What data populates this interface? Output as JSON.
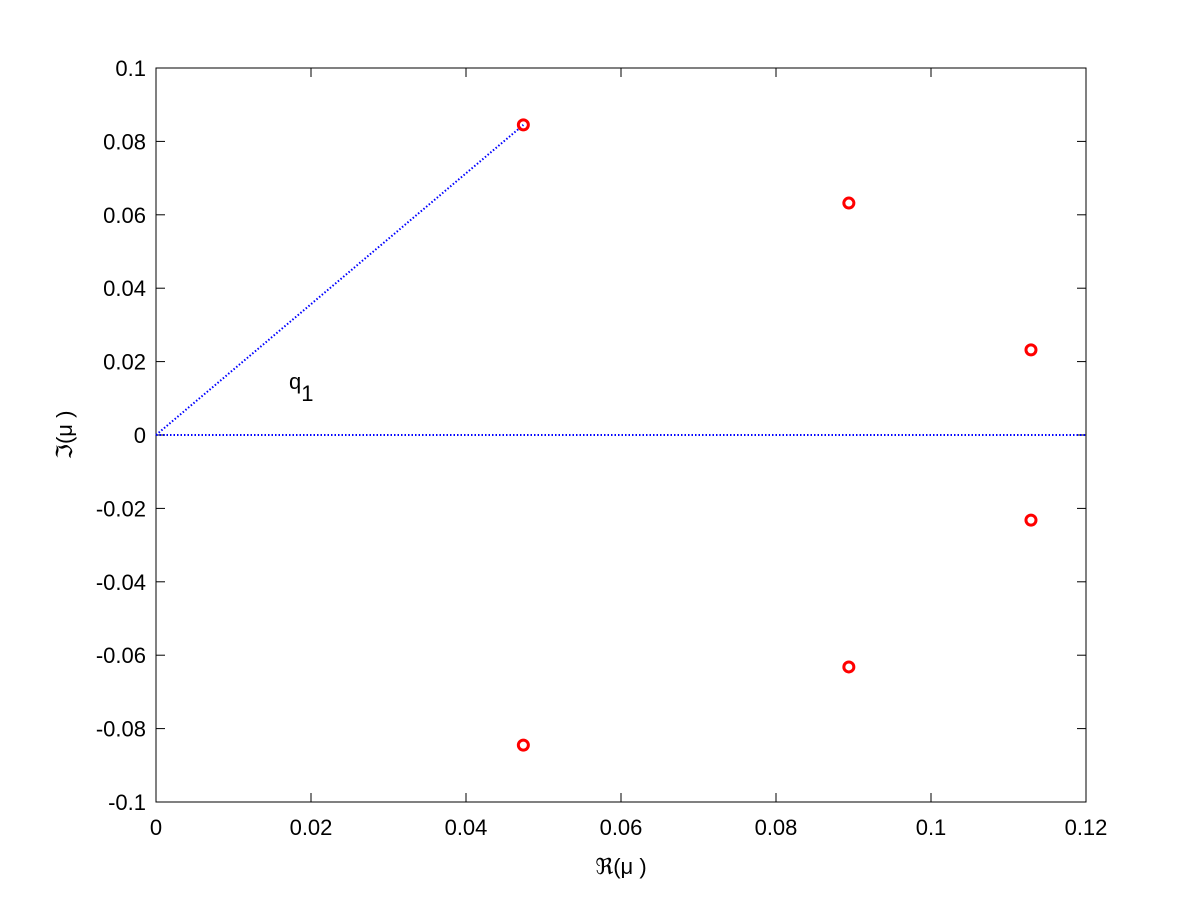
{
  "chart_data": {
    "type": "scatter",
    "xlabel": "ℜ(μ )",
    "ylabel": "ℑ(μ )",
    "annotation": {
      "text": "q",
      "subscript": "1"
    },
    "xlim": [
      0,
      0.12
    ],
    "xticks": [
      0,
      0.02,
      0.04,
      0.06,
      0.08,
      0.1,
      0.12
    ],
    "ylim": [
      -0.1,
      0.1
    ],
    "yticks": [
      -0.1,
      -0.08,
      -0.06,
      -0.04,
      -0.02,
      0,
      0.02,
      0.04,
      0.06,
      0.08,
      0.1
    ],
    "grid": false,
    "points": {
      "color": "#ff0000",
      "x": [
        0.0474,
        0.0894,
        0.1129,
        0.1129,
        0.0894,
        0.0474
      ],
      "y": [
        0.0845,
        0.0632,
        0.0232,
        -0.0232,
        -0.0632,
        -0.0845
      ]
    },
    "lines": [
      {
        "color": "#0000ff",
        "x": [
          0,
          0.0474
        ],
        "y": [
          0,
          0.0845
        ]
      },
      {
        "color": "#0000ff",
        "x": [
          0,
          0.12
        ],
        "y": [
          0,
          0
        ]
      }
    ]
  }
}
